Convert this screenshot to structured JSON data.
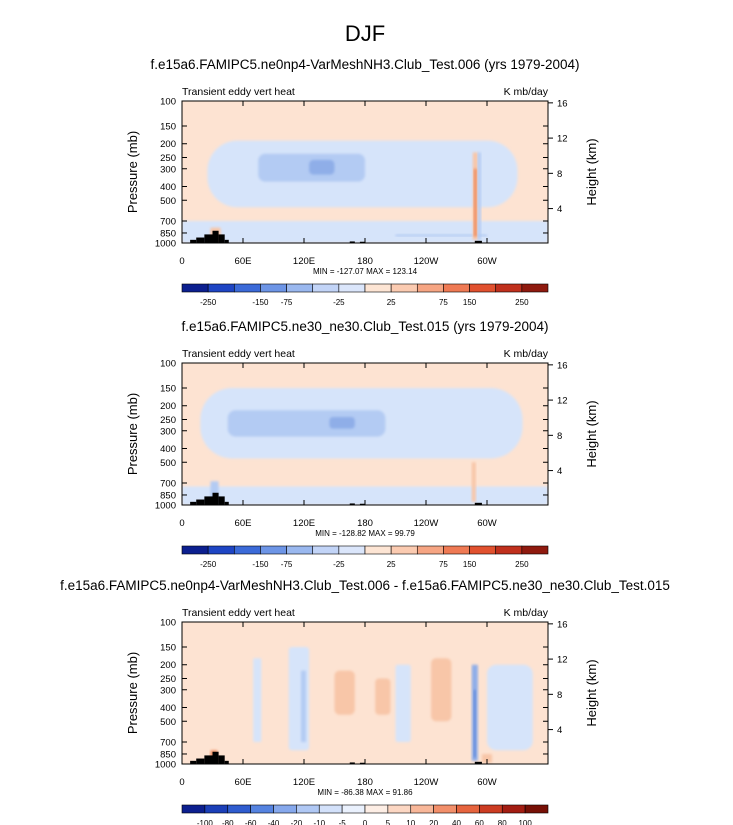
{
  "chart_data": {
    "type": "heatmap",
    "main_title": "DJF",
    "panels": [
      {
        "title": "f.e15a6.FAMIPC5.ne0np4-VarMeshNH3.Club_Test.006 (yrs 1979-2004)",
        "left_string": "Transient eddy vert heat",
        "right_string": "K mb/day",
        "stats": "MIN = -127.07  MAX = 123.14",
        "ylabel": "Pressure (mb)",
        "ylabel_right": "Height (km)",
        "xticks": [
          "0",
          "60E",
          "120E",
          "180",
          "120W",
          "60W"
        ],
        "yticks": [
          "100",
          "150",
          "200",
          "250",
          "300",
          "400",
          "500",
          "700",
          "850",
          "1000"
        ],
        "yticks_right": [
          "16",
          "12",
          "8",
          "4"
        ],
        "colorbar_labels": [
          "-250",
          "-150",
          "-75",
          "-25",
          "25",
          "75",
          "150",
          "250"
        ],
        "min": -127.07,
        "max": 123.14
      },
      {
        "title": "f.e15a6.FAMIPC5.ne30_ne30.Club_Test.015 (yrs 1979-2004)",
        "left_string": "Transient eddy vert heat",
        "right_string": "K mb/day",
        "stats": "MIN = -128.82  MAX =  99.79",
        "ylabel": "Pressure (mb)",
        "ylabel_right": "Height (km)",
        "xticks": [
          "0",
          "60E",
          "120E",
          "180",
          "120W",
          "60W"
        ],
        "yticks": [
          "100",
          "150",
          "200",
          "250",
          "300",
          "400",
          "500",
          "700",
          "850",
          "1000"
        ],
        "yticks_right": [
          "16",
          "12",
          "8",
          "4"
        ],
        "colorbar_labels": [
          "-250",
          "-150",
          "-75",
          "-25",
          "25",
          "75",
          "150",
          "250"
        ],
        "min": -128.82,
        "max": 99.79
      },
      {
        "title": "f.e15a6.FAMIPC5.ne0np4-VarMeshNH3.Club_Test.006 - f.e15a6.FAMIPC5.ne30_ne30.Club_Test.015",
        "left_string": "Transient eddy vert heat",
        "right_string": "K mb/day",
        "stats": "MIN = -86.38  MAX =  91.86",
        "ylabel": "Pressure (mb)",
        "ylabel_right": "Height (km)",
        "xticks": [
          "0",
          "60E",
          "120E",
          "180",
          "120W",
          "60W"
        ],
        "yticks": [
          "100",
          "150",
          "200",
          "250",
          "300",
          "400",
          "500",
          "700",
          "850",
          "1000"
        ],
        "yticks_right": [
          "16",
          "12",
          "8",
          "4"
        ],
        "colorbar_labels": [
          "-100",
          "-80",
          "-60",
          "-40",
          "-20",
          "-10",
          "-5",
          "0",
          "5",
          "10",
          "20",
          "40",
          "60",
          "80",
          "100"
        ],
        "min": -86.38,
        "max": 91.86
      }
    ],
    "x_range": [
      0,
      360
    ],
    "y_range_mb": [
      1000,
      100
    ],
    "colors": {
      "bg_positive": "#fde3d2",
      "light_blue": "#d6e4fa",
      "mid_blue": "#b3cbf3",
      "blue": "#8faee8",
      "dark_blue": "#5f86d8",
      "light_red": "#f8c6a8",
      "red": "#ee8e62",
      "deep_red": "#d64527",
      "terrain": "#000000",
      "colorbar_main": [
        "#0c1f8f",
        "#1e45c4",
        "#3b6ad8",
        "#6d95e6",
        "#9ab8ef",
        "#c2d4f7",
        "#dbe6fb",
        "#fde5d4",
        "#fbcbb1",
        "#f6a583",
        "#ef7a54",
        "#e1512f",
        "#c0301d",
        "#8f1a0f"
      ],
      "colorbar_diff": [
        "#0c1f8f",
        "#1b3fb8",
        "#2f5ccf",
        "#5583e0",
        "#86a8ec",
        "#b0c8f4",
        "#d3e1fa",
        "#eaf1fd",
        "#fdeee5",
        "#fcd7c3",
        "#f8b799",
        "#f28f6a",
        "#e6643e",
        "#cc3c22",
        "#a31d12",
        "#771006"
      ]
    }
  }
}
